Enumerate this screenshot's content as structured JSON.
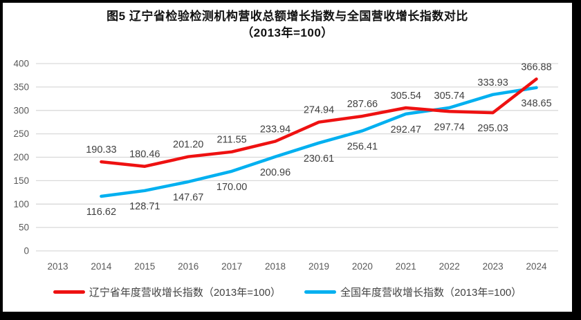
{
  "title": {
    "line1": "图5  辽宁省检验检测机构营收总额增长指数与全国营收增长指数对比",
    "line2": "（2013年=100）"
  },
  "chart_data": {
    "type": "line",
    "categories": [
      "2013",
      "2014",
      "2015",
      "2016",
      "2017",
      "2018",
      "2019",
      "2020",
      "2021",
      "2022",
      "2023",
      "2024"
    ],
    "series": [
      {
        "name": "辽宁省年度营收增长指数（2013年=100）",
        "color": "#EE1111",
        "values": [
          null,
          190.33,
          180.46,
          201.2,
          211.55,
          233.94,
          274.94,
          287.66,
          305.54,
          297.74,
          295.03,
          366.88
        ],
        "labels": [
          null,
          "190.33",
          "180.46",
          "201.20",
          "211.55",
          "233.94",
          "274.94",
          "287.66",
          "305.54",
          "297.74",
          "295.03",
          "366.88"
        ],
        "label_side": [
          null,
          "above",
          "above",
          "above",
          "above",
          "above",
          "above",
          "above",
          "above",
          "below",
          "below",
          "above"
        ]
      },
      {
        "name": "全国年度营收增长指数（2013年=100）",
        "color": "#00B0F0",
        "values": [
          null,
          116.62,
          128.71,
          147.67,
          170.0,
          200.96,
          230.61,
          256.41,
          292.47,
          305.74,
          333.93,
          348.65
        ],
        "labels": [
          null,
          "116.62",
          "128.71",
          "147.67",
          "170.00",
          "200.96",
          "230.61",
          "256.41",
          "292.47",
          "305.74",
          "333.93",
          "348.65"
        ],
        "label_side": [
          null,
          "below",
          "below",
          "below",
          "below",
          "below",
          "below",
          "below",
          "below",
          "above",
          "above",
          "below"
        ]
      }
    ],
    "ylim": [
      0,
      400
    ],
    "ytick_step": 50,
    "grid": true,
    "legend_position": "bottom",
    "grid_color": "#D9D9D9",
    "tick_color": "#595959",
    "label_color": "#404040"
  },
  "legend": {
    "items": [
      {
        "label": "辽宁省年度营收增长指数（2013年=100）",
        "color": "#EE1111"
      },
      {
        "label": "全国年度营收增长指数（2013年=100）",
        "color": "#00B0F0"
      }
    ]
  }
}
